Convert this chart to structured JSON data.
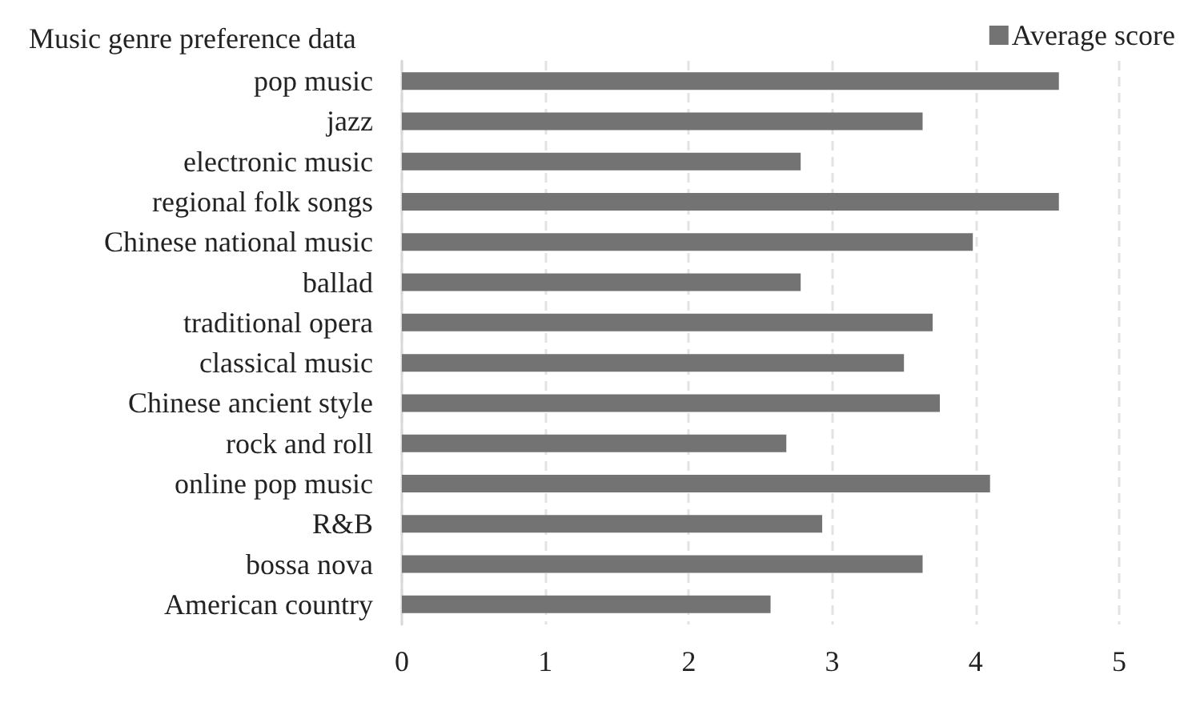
{
  "chart_data": {
    "type": "bar",
    "orientation": "horizontal",
    "title": "Music genre preference data",
    "categories": [
      "pop music",
      "jazz",
      "electronic music",
      "regional folk songs",
      "Chinese national music",
      "ballad",
      "traditional opera",
      "classical music",
      "Chinese ancient style",
      "rock and roll",
      "online pop music",
      "R&B",
      "bossa nova",
      "American country"
    ],
    "series": [
      {
        "name": "Average score",
        "color": "#737373",
        "values": [
          4.58,
          3.63,
          2.78,
          4.58,
          3.98,
          2.78,
          3.7,
          3.5,
          3.75,
          2.68,
          4.1,
          2.93,
          3.63,
          2.57
        ]
      }
    ],
    "xlim": [
      0,
      5
    ],
    "xticks": [
      0,
      1,
      2,
      3,
      4,
      5
    ],
    "grid": "x",
    "legend": "top right"
  }
}
